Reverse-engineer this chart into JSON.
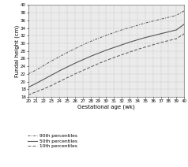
{
  "title": "",
  "xlabel": "Gestational age (wk)",
  "ylabel": "Fundal height (cm)",
  "x_start": 20,
  "x_end": 40,
  "ylim": [
    16,
    40
  ],
  "xlim": [
    20,
    40
  ],
  "yticks": [
    16,
    18,
    20,
    22,
    24,
    26,
    28,
    30,
    32,
    34,
    36,
    38,
    40
  ],
  "xticks": [
    20,
    21,
    22,
    23,
    24,
    25,
    26,
    27,
    28,
    29,
    30,
    31,
    32,
    33,
    34,
    35,
    36,
    37,
    38,
    39,
    40
  ],
  "line_color": "#555555",
  "bg_color": "#ebebeb",
  "percentile_90": [
    22.0,
    23.0,
    24.2,
    25.4,
    26.5,
    27.6,
    28.6,
    29.6,
    30.5,
    31.3,
    32.1,
    32.8,
    33.5,
    34.1,
    34.7,
    35.3,
    35.8,
    36.3,
    36.8,
    37.3,
    38.5
  ],
  "percentile_50": [
    18.5,
    19.5,
    20.6,
    21.7,
    22.8,
    23.8,
    24.8,
    25.7,
    26.6,
    27.4,
    28.2,
    28.9,
    29.6,
    30.3,
    30.9,
    31.5,
    32.0,
    32.5,
    33.0,
    33.5,
    35.0
  ],
  "percentile_10": [
    16.5,
    17.3,
    18.1,
    19.0,
    20.0,
    21.0,
    22.0,
    22.9,
    23.8,
    24.7,
    25.5,
    26.3,
    27.0,
    27.7,
    28.4,
    29.0,
    29.6,
    30.2,
    30.7,
    31.2,
    32.5
  ],
  "legend_90_label": "90th percentiles",
  "legend_50_label": "50th percentiles",
  "legend_10_label": "10th percentiles",
  "fig_width": 2.38,
  "fig_height": 2.12,
  "dpi": 100
}
